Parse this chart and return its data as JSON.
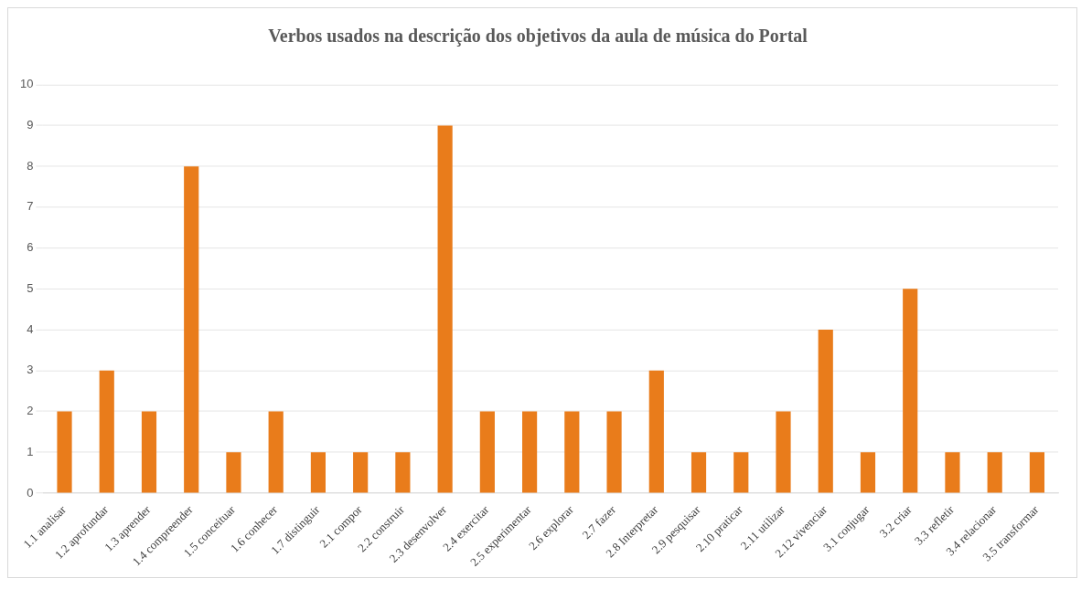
{
  "chart_data": {
    "type": "bar",
    "title": "Verbos usados na descrição dos objetivos da aula de música do Portal",
    "categories": [
      "1.1 analisar",
      "1.2 aprofundar",
      "1.3 aprender",
      "1.4 compreender",
      "1.5 conceituar",
      "1.6 conhecer",
      "1.7 distinguir",
      "2.1 compor",
      "2.2 construir",
      "2.3 desenvolver",
      "2.4 exercitar",
      "2.5 experimentar",
      "2.6 explorar",
      "2.7 fazer",
      "2.8 Interpretar",
      "2.9 pesquisar",
      "2.10 praticar",
      "2.11 utilizar",
      "2.12 vivenciar",
      "3.1 conjugar",
      "3.2 criar",
      "3.3 refletir",
      "3.4 relacionar",
      "3.5 transformar"
    ],
    "values": [
      2,
      3,
      2,
      8,
      1,
      2,
      1,
      1,
      1,
      9,
      2,
      2,
      2,
      2,
      3,
      1,
      1,
      2,
      4,
      1,
      5,
      1,
      1,
      1
    ],
    "color": "#e97c1b",
    "ylim": [
      0,
      10
    ],
    "yticks": [
      0,
      1,
      2,
      3,
      4,
      5,
      6,
      7,
      8,
      9,
      10
    ],
    "grid": "y",
    "legend": false
  }
}
